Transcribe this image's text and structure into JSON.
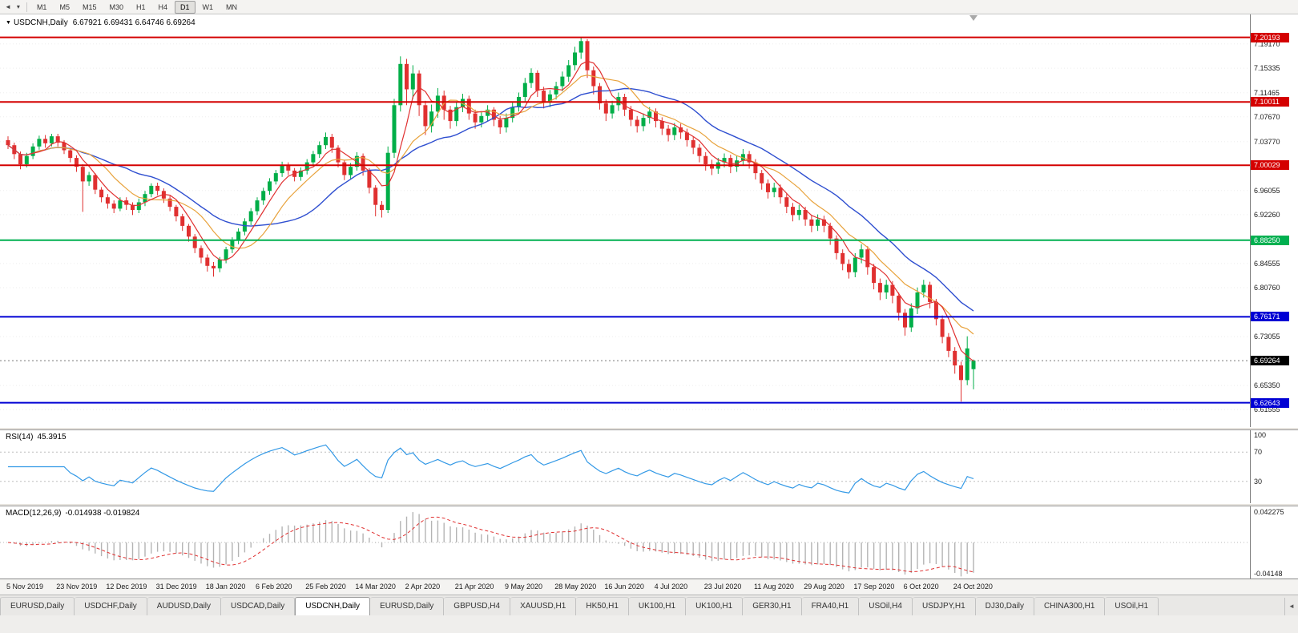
{
  "toolbar": {
    "back_icon": "◄",
    "caret_icon": "▾",
    "timeframes": [
      "M1",
      "M5",
      "M15",
      "M30",
      "H1",
      "H4",
      "D1",
      "W1",
      "MN"
    ],
    "active_timeframe": "D1"
  },
  "chart": {
    "title": {
      "collapse_icon": "▼",
      "symbol": "USDCNH,Daily",
      "ohlc": "6.67921 6.69431 6.64746 6.69264"
    },
    "price_axis": {
      "pmax": 7.238,
      "pmin": 6.588,
      "ticks": [
        "7.19170",
        "7.15335",
        "7.11465",
        "7.07670",
        "7.03770",
        "6.96055",
        "6.92260",
        "6.84555",
        "6.80760",
        "6.73055",
        "6.65350",
        "6.61555"
      ]
    },
    "levels": [
      {
        "value": 7.20193,
        "label": "7.20193",
        "color": "#d40000"
      },
      {
        "value": 7.10011,
        "label": "7.10011",
        "color": "#d40000"
      },
      {
        "value": 7.00029,
        "label": "7.00029",
        "color": "#d40000"
      },
      {
        "value": 6.8825,
        "label": "6.88250",
        "color": "#00b050"
      },
      {
        "value": 6.76171,
        "label": "6.76171",
        "color": "#0000d4"
      },
      {
        "value": 6.62643,
        "label": "6.62643",
        "color": "#0000d4"
      }
    ],
    "current_price": {
      "value": 6.69264,
      "label": "6.69264",
      "color": "#000000"
    },
    "colors": {
      "bull": "#00ae48",
      "bear": "#e03030",
      "ma_fast": "#e03030",
      "ma_mid": "#e8a33d",
      "ma_slow": "#2f4fd0",
      "rsi": "#3399e6",
      "macd_hist": "#b4b4b4",
      "macd_signal": "#e03030",
      "grid": "#ededed"
    }
  },
  "chart_data": {
    "type": "candlestick",
    "symbol": "USDCNH",
    "period": "Daily",
    "ohlc_current": {
      "open": 6.67921,
      "high": 6.69431,
      "low": 6.64746,
      "close": 6.69264
    },
    "candles": [
      [
        7.04,
        7.046,
        7.026,
        7.032
      ],
      [
        7.032,
        7.036,
        7.01,
        7.018
      ],
      [
        7.018,
        7.022,
        6.994,
        7.002
      ],
      [
        7.002,
        7.02,
        6.997,
        7.015
      ],
      [
        7.015,
        7.035,
        7.01,
        7.03
      ],
      [
        7.03,
        7.047,
        7.025,
        7.042
      ],
      [
        7.042,
        7.048,
        7.028,
        7.035
      ],
      [
        7.035,
        7.05,
        7.03,
        7.046
      ],
      [
        7.046,
        7.05,
        7.03,
        7.036
      ],
      [
        7.036,
        7.04,
        7.018,
        7.024
      ],
      [
        7.024,
        7.028,
        7.005,
        7.012
      ],
      [
        7.012,
        7.016,
        6.99,
        6.998
      ],
      [
        6.998,
        7.002,
        6.927,
        6.975
      ],
      [
        6.975,
        6.99,
        6.968,
        6.985
      ],
      [
        6.985,
        6.988,
        6.955,
        6.962
      ],
      [
        6.962,
        6.966,
        6.942,
        6.95
      ],
      [
        6.95,
        6.955,
        6.932,
        6.94
      ],
      [
        6.94,
        6.945,
        6.925,
        6.932
      ],
      [
        6.932,
        6.95,
        6.928,
        6.945
      ],
      [
        6.945,
        6.95,
        6.93,
        6.938
      ],
      [
        6.938,
        6.942,
        6.922,
        6.93
      ],
      [
        6.93,
        6.948,
        6.925,
        6.942
      ],
      [
        6.942,
        6.96,
        6.936,
        6.955
      ],
      [
        6.955,
        6.972,
        6.95,
        6.968
      ],
      [
        6.968,
        6.973,
        6.953,
        6.96
      ],
      [
        6.96,
        6.964,
        6.941,
        6.948
      ],
      [
        6.948,
        6.952,
        6.928,
        6.935
      ],
      [
        6.935,
        6.938,
        6.912,
        6.92
      ],
      [
        6.92,
        6.924,
        6.897,
        6.905
      ],
      [
        6.905,
        6.908,
        6.88,
        6.888
      ],
      [
        6.888,
        6.892,
        6.862,
        6.87
      ],
      [
        6.87,
        6.874,
        6.846,
        6.855
      ],
      [
        6.855,
        6.86,
        6.833,
        6.842
      ],
      [
        6.842,
        6.848,
        6.825,
        6.838
      ],
      [
        6.838,
        6.856,
        6.832,
        6.852
      ],
      [
        6.852,
        6.872,
        6.846,
        6.868
      ],
      [
        6.868,
        6.887,
        6.862,
        6.882
      ],
      [
        6.882,
        6.901,
        6.876,
        6.896
      ],
      [
        6.896,
        6.917,
        6.89,
        6.912
      ],
      [
        6.912,
        6.933,
        6.906,
        6.928
      ],
      [
        6.928,
        6.95,
        6.922,
        6.945
      ],
      [
        6.945,
        6.965,
        6.938,
        6.96
      ],
      [
        6.96,
        6.98,
        6.954,
        6.975
      ],
      [
        6.975,
        6.993,
        6.97,
        6.988
      ],
      [
        6.988,
        7.006,
        6.982,
        7.0
      ],
      [
        7.0,
        7.005,
        6.985,
        6.992
      ],
      [
        6.992,
        6.996,
        6.975,
        6.982
      ],
      [
        6.982,
        6.997,
        6.976,
        6.992
      ],
      [
        6.992,
        7.01,
        6.986,
        7.005
      ],
      [
        7.005,
        7.023,
        6.999,
        7.018
      ],
      [
        7.018,
        7.038,
        7.012,
        7.032
      ],
      [
        7.032,
        7.052,
        7.026,
        7.045
      ],
      [
        7.045,
        7.05,
        7.02,
        7.028
      ],
      [
        7.028,
        7.032,
        6.997,
        7.005
      ],
      [
        7.005,
        7.009,
        6.977,
        6.985
      ],
      [
        6.985,
        7.004,
        6.979,
        6.998
      ],
      [
        6.998,
        7.021,
        6.992,
        7.015
      ],
      [
        7.015,
        7.019,
        6.984,
        6.992
      ],
      [
        6.992,
        6.996,
        6.956,
        6.965
      ],
      [
        6.965,
        6.969,
        6.92,
        6.938
      ],
      [
        6.938,
        6.944,
        6.918,
        6.93
      ],
      [
        6.93,
        7.03,
        6.925,
        7.02
      ],
      [
        7.02,
        7.105,
        7.012,
        7.095
      ],
      [
        7.095,
        7.172,
        7.085,
        7.16
      ],
      [
        7.16,
        7.168,
        7.095,
        7.12
      ],
      [
        7.12,
        7.158,
        7.105,
        7.145
      ],
      [
        7.145,
        7.15,
        7.078,
        7.095
      ],
      [
        7.095,
        7.102,
        7.048,
        7.062
      ],
      [
        7.062,
        7.096,
        7.052,
        7.085
      ],
      [
        7.085,
        7.122,
        7.075,
        7.11
      ],
      [
        7.11,
        7.118,
        7.072,
        7.088
      ],
      [
        7.088,
        7.094,
        7.058,
        7.07
      ],
      [
        7.07,
        7.1,
        7.062,
        7.092
      ],
      [
        7.092,
        7.113,
        7.084,
        7.105
      ],
      [
        7.105,
        7.11,
        7.072,
        7.082
      ],
      [
        7.082,
        7.088,
        7.058,
        7.068
      ],
      [
        7.068,
        7.085,
        7.06,
        7.078
      ],
      [
        7.078,
        7.095,
        7.07,
        7.088
      ],
      [
        7.088,
        7.092,
        7.062,
        7.072
      ],
      [
        7.072,
        7.078,
        7.05,
        7.06
      ],
      [
        7.06,
        7.082,
        7.052,
        7.075
      ],
      [
        7.075,
        7.099,
        7.068,
        7.092
      ],
      [
        7.092,
        7.115,
        7.085,
        7.108
      ],
      [
        7.108,
        7.138,
        7.1,
        7.13
      ],
      [
        7.13,
        7.153,
        7.122,
        7.146
      ],
      [
        7.146,
        7.15,
        7.108,
        7.118
      ],
      [
        7.118,
        7.124,
        7.09,
        7.1
      ],
      [
        7.1,
        7.119,
        7.092,
        7.112
      ],
      [
        7.112,
        7.132,
        7.104,
        7.125
      ],
      [
        7.125,
        7.148,
        7.117,
        7.14
      ],
      [
        7.14,
        7.166,
        7.132,
        7.158
      ],
      [
        7.158,
        7.187,
        7.15,
        7.178
      ],
      [
        7.178,
        7.201,
        7.168,
        7.196
      ],
      [
        7.196,
        7.199,
        7.138,
        7.15
      ],
      [
        7.15,
        7.156,
        7.112,
        7.125
      ],
      [
        7.125,
        7.13,
        7.088,
        7.098
      ],
      [
        7.098,
        7.104,
        7.07,
        7.082
      ],
      [
        7.082,
        7.102,
        7.074,
        7.095
      ],
      [
        7.095,
        7.115,
        7.086,
        7.108
      ],
      [
        7.108,
        7.113,
        7.078,
        7.088
      ],
      [
        7.088,
        7.094,
        7.062,
        7.072
      ],
      [
        7.072,
        7.078,
        7.052,
        7.062
      ],
      [
        7.062,
        7.082,
        7.054,
        7.075
      ],
      [
        7.075,
        7.092,
        7.066,
        7.085
      ],
      [
        7.085,
        7.09,
        7.06,
        7.07
      ],
      [
        7.07,
        7.076,
        7.048,
        7.058
      ],
      [
        7.058,
        7.064,
        7.038,
        7.048
      ],
      [
        7.048,
        7.067,
        7.04,
        7.06
      ],
      [
        7.06,
        7.066,
        7.042,
        7.052
      ],
      [
        7.052,
        7.058,
        7.03,
        7.04
      ],
      [
        7.04,
        7.046,
        7.018,
        7.028
      ],
      [
        7.028,
        7.034,
        7.005,
        7.015
      ],
      [
        7.015,
        7.021,
        6.992,
        7.002
      ],
      [
        7.002,
        7.009,
        6.985,
        6.995
      ],
      [
        6.995,
        7.012,
        6.987,
        7.005
      ],
      [
        7.005,
        7.019,
        6.997,
        7.012
      ],
      [
        7.012,
        7.017,
        6.988,
        6.998
      ],
      [
        6.998,
        7.015,
        6.99,
        7.008
      ],
      [
        7.008,
        7.026,
        7.0,
        7.018
      ],
      [
        7.018,
        7.023,
        6.995,
        7.005
      ],
      [
        7.005,
        7.01,
        6.978,
        6.988
      ],
      [
        6.988,
        6.993,
        6.962,
        6.972
      ],
      [
        6.972,
        6.978,
        6.948,
        6.958
      ],
      [
        6.958,
        6.973,
        6.95,
        6.965
      ],
      [
        6.965,
        6.97,
        6.94,
        6.95
      ],
      [
        6.95,
        6.956,
        6.925,
        6.935
      ],
      [
        6.935,
        6.941,
        6.912,
        6.922
      ],
      [
        6.922,
        6.938,
        6.914,
        6.93
      ],
      [
        6.93,
        6.935,
        6.905,
        6.915
      ],
      [
        6.915,
        6.922,
        6.895,
        6.905
      ],
      [
        6.905,
        6.923,
        6.897,
        6.915
      ],
      [
        6.915,
        6.921,
        6.895,
        6.905
      ],
      [
        6.905,
        6.91,
        6.875,
        6.885
      ],
      [
        6.885,
        6.89,
        6.852,
        6.862
      ],
      [
        6.862,
        6.868,
        6.835,
        6.845
      ],
      [
        6.845,
        6.852,
        6.822,
        6.832
      ],
      [
        6.832,
        6.862,
        6.824,
        6.855
      ],
      [
        6.855,
        6.876,
        6.846,
        6.868
      ],
      [
        6.868,
        6.873,
        6.828,
        6.84
      ],
      [
        6.84,
        6.845,
        6.805,
        6.815
      ],
      [
        6.815,
        6.822,
        6.788,
        6.8
      ],
      [
        6.8,
        6.82,
        6.79,
        6.812
      ],
      [
        6.812,
        6.818,
        6.783,
        6.795
      ],
      [
        6.795,
        6.8,
        6.756,
        6.768
      ],
      [
        6.768,
        6.774,
        6.732,
        6.745
      ],
      [
        6.745,
        6.783,
        6.738,
        6.775
      ],
      [
        6.775,
        6.808,
        6.766,
        6.8
      ],
      [
        6.8,
        6.82,
        6.792,
        6.812
      ],
      [
        6.812,
        6.817,
        6.775,
        6.785
      ],
      [
        6.785,
        6.79,
        6.748,
        6.758
      ],
      [
        6.758,
        6.764,
        6.72,
        6.73
      ],
      [
        6.73,
        6.736,
        6.698,
        6.708
      ],
      [
        6.708,
        6.714,
        6.672,
        6.685
      ],
      [
        6.685,
        6.691,
        6.628,
        6.662
      ],
      [
        6.662,
        6.731,
        6.654,
        6.712
      ],
      [
        6.6792,
        6.6943,
        6.6475,
        6.6926
      ]
    ]
  },
  "rsi": {
    "label": "RSI(14)",
    "value": "45.3915",
    "axis_labels": [
      {
        "text": "100",
        "level": 100
      },
      {
        "text": "70",
        "level": 70
      },
      {
        "text": "30",
        "level": 30
      }
    ],
    "dotted_levels": [
      70,
      30
    ]
  },
  "macd": {
    "label": "MACD(12,26,9)",
    "values": "-0.014938 -0.019824",
    "axis_max_label": "0.042275",
    "axis_min_label": "-0.04148"
  },
  "date_axis": {
    "labels": [
      "5 Nov 2019",
      "23 Nov 2019",
      "12 Dec 2019",
      "31 Dec 2019",
      "18 Jan 2020",
      "6 Feb 2020",
      "25 Feb 2020",
      "14 Mar 2020",
      "2 Apr 2020",
      "21 Apr 2020",
      "9 May 2020",
      "28 May 2020",
      "16 Jun 2020",
      "4 Jul 2020",
      "23 Jul 2020",
      "11 Aug 2020",
      "29 Aug 2020",
      "17 Sep 2020",
      "6 Oct 2020",
      "24 Oct 2020"
    ]
  },
  "tabs": {
    "active_index": 4,
    "scroll_icon": "◄",
    "items": [
      "EURUSD,Daily",
      "USDCHF,Daily",
      "AUDUSD,Daily",
      "USDCAD,Daily",
      "USDCNH,Daily",
      "EURUSD,Daily",
      "GBPUSD,H4",
      "XAUUSD,H1",
      "HK50,H1",
      "UK100,H1",
      "UK100,H1",
      "GER30,H1",
      "FRA40,H1",
      "USOil,H4",
      "USDJPY,H1",
      "DJ30,Daily",
      "CHINA300,H1",
      "USOil,H1"
    ]
  }
}
